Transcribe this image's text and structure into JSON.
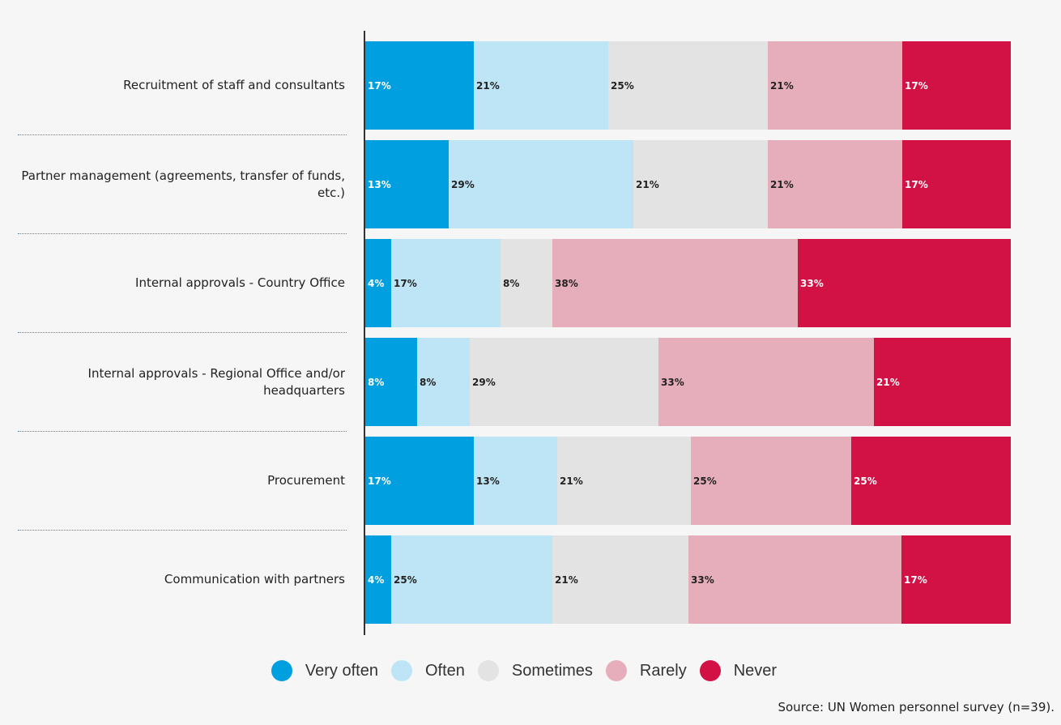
{
  "chart_data": {
    "type": "bar",
    "orientation": "horizontal",
    "stacked": true,
    "normalized": true,
    "categories": [
      "Recruitment of staff and consultants",
      "Partner management (agreements, transfer of funds, etc.)",
      "Internal approvals - Country Office",
      "Internal approvals - Regional Office and/or headquarters",
      "Procurement",
      "Communication with partners"
    ],
    "series": [
      {
        "name": "Very often",
        "color": "#009fdf",
        "label_color": "#ffffff",
        "values": [
          17,
          13,
          4,
          8,
          17,
          4
        ]
      },
      {
        "name": "Often",
        "color": "#bde5f6",
        "label_color": "#222222",
        "values": [
          21,
          29,
          17,
          8,
          13,
          25
        ]
      },
      {
        "name": "Sometimes",
        "color": "#e3e3e3",
        "label_color": "#222222",
        "values": [
          25,
          21,
          8,
          29,
          21,
          21
        ]
      },
      {
        "name": "Rarely",
        "color": "#e6adba",
        "label_color": "#222222",
        "values": [
          21,
          21,
          38,
          33,
          25,
          33
        ]
      },
      {
        "name": "Never",
        "color": "#d21245",
        "label_color": "#ffffff",
        "values": [
          17,
          17,
          33,
          21,
          25,
          17
        ]
      }
    ],
    "data_labels": [
      [
        "17%",
        "21%",
        "25%",
        "21%",
        "17%"
      ],
      [
        "13%",
        "29%",
        "21%",
        "21%",
        "17%"
      ],
      [
        "4%",
        "17%",
        "8%",
        "38%",
        "33%"
      ],
      [
        "8%",
        "8%",
        "29%",
        "33%",
        "21%"
      ],
      [
        "17%",
        "13%",
        "21%",
        "25%",
        "25%"
      ],
      [
        "4%",
        "25%",
        "21%",
        "33%",
        "17%"
      ]
    ],
    "legend_position": "bottom",
    "grid": false
  },
  "source": "Source: UN Women personnel survey (n=39)."
}
